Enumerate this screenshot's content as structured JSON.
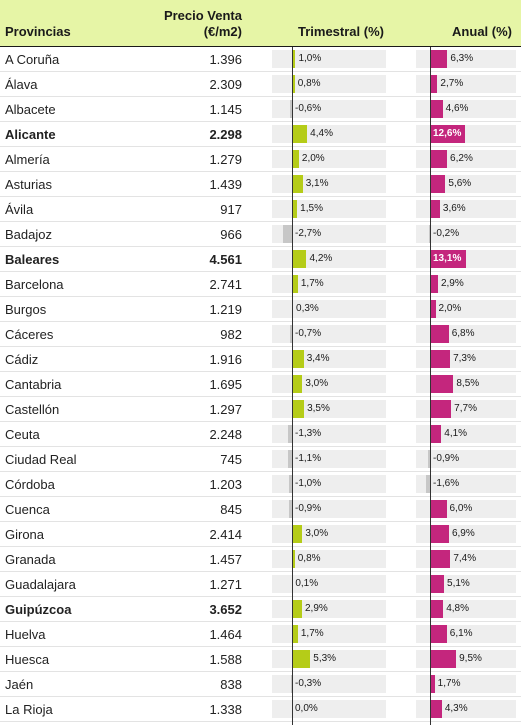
{
  "header": {
    "provincias": "Provincias",
    "precio_line1": "Precio Venta",
    "precio_line2": "(€/m2)",
    "trimestral": "Trimestral (%)",
    "anual": "Anual (%)"
  },
  "colors": {
    "header_bg": "#e6f5a6",
    "trimestral_bar": "#b5cc18",
    "anual_bar": "#c4267d",
    "negative_bar": "#c7c7c7"
  },
  "chart_data": {
    "type": "table",
    "columns": [
      "Provincias",
      "Precio Venta (€/m2)",
      "Trimestral (%)",
      "Anual (%)"
    ],
    "rows": [
      {
        "name": "A Coruña",
        "price": "1.396",
        "tri": 1.0,
        "tri_label": "1,0%",
        "anu": 6.3,
        "anu_label": "6,3%",
        "bold": false
      },
      {
        "name": "Álava",
        "price": "2.309",
        "tri": 0.8,
        "tri_label": "0,8%",
        "anu": 2.7,
        "anu_label": "2,7%",
        "bold": false
      },
      {
        "name": "Albacete",
        "price": "1.145",
        "tri": -0.6,
        "tri_label": "-0,6%",
        "anu": 4.6,
        "anu_label": "4,6%",
        "bold": false
      },
      {
        "name": "Alicante",
        "price": "2.298",
        "tri": 4.4,
        "tri_label": "4,4%",
        "anu": 12.6,
        "anu_label": "12,6%",
        "bold": true
      },
      {
        "name": "Almería",
        "price": "1.279",
        "tri": 2.0,
        "tri_label": "2,0%",
        "anu": 6.2,
        "anu_label": "6,2%",
        "bold": false
      },
      {
        "name": "Asturias",
        "price": "1.439",
        "tri": 3.1,
        "tri_label": "3,1%",
        "anu": 5.6,
        "anu_label": "5,6%",
        "bold": false
      },
      {
        "name": "Ávila",
        "price": "917",
        "tri": 1.5,
        "tri_label": "1,5%",
        "anu": 3.6,
        "anu_label": "3,6%",
        "bold": false
      },
      {
        "name": "Badajoz",
        "price": "966",
        "tri": -2.7,
        "tri_label": "-2,7%",
        "anu": -0.2,
        "anu_label": "-0,2%",
        "bold": false
      },
      {
        "name": "Baleares",
        "price": "4.561",
        "tri": 4.2,
        "tri_label": "4,2%",
        "anu": 13.1,
        "anu_label": "13,1%",
        "bold": true
      },
      {
        "name": "Barcelona",
        "price": "2.741",
        "tri": 1.7,
        "tri_label": "1,7%",
        "anu": 2.9,
        "anu_label": "2,9%",
        "bold": false
      },
      {
        "name": "Burgos",
        "price": "1.219",
        "tri": 0.3,
        "tri_label": "0,3%",
        "anu": 2.0,
        "anu_label": "2,0%",
        "bold": false
      },
      {
        "name": "Cáceres",
        "price": "982",
        "tri": -0.7,
        "tri_label": "-0,7%",
        "anu": 6.8,
        "anu_label": "6,8%",
        "bold": false
      },
      {
        "name": "Cádiz",
        "price": "1.916",
        "tri": 3.4,
        "tri_label": "3,4%",
        "anu": 7.3,
        "anu_label": "7,3%",
        "bold": false
      },
      {
        "name": "Cantabria",
        "price": "1.695",
        "tri": 3.0,
        "tri_label": "3,0%",
        "anu": 8.5,
        "anu_label": "8,5%",
        "bold": false
      },
      {
        "name": "Castellón",
        "price": "1.297",
        "tri": 3.5,
        "tri_label": "3,5%",
        "anu": 7.7,
        "anu_label": "7,7%",
        "bold": false
      },
      {
        "name": "Ceuta",
        "price": "2.248",
        "tri": -1.3,
        "tri_label": "-1,3%",
        "anu": 4.1,
        "anu_label": "4,1%",
        "bold": false
      },
      {
        "name": "Ciudad Real",
        "price": "745",
        "tri": -1.1,
        "tri_label": "-1,1%",
        "anu": -0.9,
        "anu_label": "-0,9%",
        "bold": false
      },
      {
        "name": "Córdoba",
        "price": "1.203",
        "tri": -1.0,
        "tri_label": "-1,0%",
        "anu": -1.6,
        "anu_label": "-1,6%",
        "bold": false
      },
      {
        "name": "Cuenca",
        "price": "845",
        "tri": -0.9,
        "tri_label": "-0,9%",
        "anu": 6.0,
        "anu_label": "6,0%",
        "bold": false
      },
      {
        "name": "Girona",
        "price": "2.414",
        "tri": 3.0,
        "tri_label": "3,0%",
        "anu": 6.9,
        "anu_label": "6,9%",
        "bold": false
      },
      {
        "name": "Granada",
        "price": "1.457",
        "tri": 0.8,
        "tri_label": "0,8%",
        "anu": 7.4,
        "anu_label": "7,4%",
        "bold": false
      },
      {
        "name": "Guadalajara",
        "price": "1.271",
        "tri": 0.1,
        "tri_label": "0,1%",
        "anu": 5.1,
        "anu_label": "5,1%",
        "bold": false
      },
      {
        "name": "Guipúzcoa",
        "price": "3.652",
        "tri": 2.9,
        "tri_label": "2,9%",
        "anu": 4.8,
        "anu_label": "4,8%",
        "bold": true
      },
      {
        "name": "Huelva",
        "price": "1.464",
        "tri": 1.7,
        "tri_label": "1,7%",
        "anu": 6.1,
        "anu_label": "6,1%",
        "bold": false
      },
      {
        "name": "Huesca",
        "price": "1.588",
        "tri": 5.3,
        "tri_label": "5,3%",
        "anu": 9.5,
        "anu_label": "9,5%",
        "bold": false
      },
      {
        "name": "Jaén",
        "price": "838",
        "tri": -0.3,
        "tri_label": "-0,3%",
        "anu": 1.7,
        "anu_label": "1,7%",
        "bold": false
      },
      {
        "name": "La Rioja",
        "price": "1.338",
        "tri": 0.0,
        "tri_label": "0,0%",
        "anu": 4.3,
        "anu_label": "4,3%",
        "bold": false
      }
    ]
  }
}
